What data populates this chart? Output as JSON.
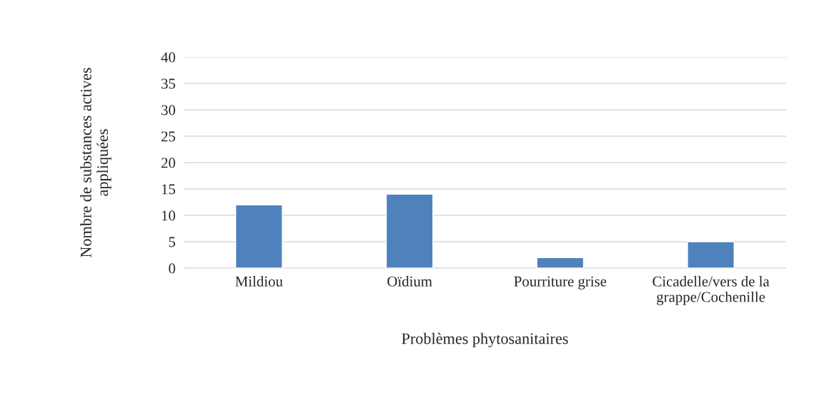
{
  "chart_data": {
    "type": "bar",
    "xlabel": "Problèmes phytosanitaires",
    "ylabel": "Nombre de substances actives appliquées",
    "categories": [
      "Mildiou",
      "Oïdium",
      "Pourriture grise",
      "Cicadelle/vers de la grappe/Cochenille"
    ],
    "values": [
      12,
      14,
      2,
      5
    ],
    "color": "#4f81bd",
    "ylim": [
      0,
      40
    ],
    "yticks": [
      0,
      5,
      10,
      15,
      20,
      25,
      30,
      35,
      40
    ],
    "grid": "y",
    "legend": false
  }
}
